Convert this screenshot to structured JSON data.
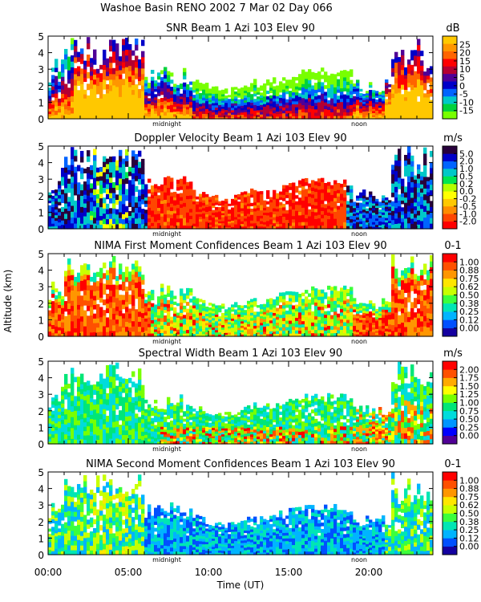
{
  "header": {
    "title": "Washoe Basin RENO 2002   7 Mar 02 Day 066"
  },
  "figure": {
    "ylabel": "Altitude (km)",
    "xlabel": "Time (UT)",
    "x_ticks": [
      "00:00",
      "05:00",
      "10:00",
      "15:00",
      "20:00"
    ],
    "midnight_label": "midnight",
    "noon_label": "noon"
  },
  "chart_data": [
    {
      "type": "heatmap",
      "title": "SNR Beam 1 Azi 103 Elev 90",
      "unit": "dB",
      "xlim": [
        0,
        24
      ],
      "ylim": [
        0,
        5
      ],
      "y_ticks": [
        "0",
        "1",
        "2",
        "3",
        "4",
        "5"
      ],
      "colorbar_ticks": [
        "-15",
        "-10",
        "-5",
        "0",
        "5",
        "10",
        "15",
        "20",
        "25"
      ],
      "colors": [
        "#78ff00",
        "#00d23c",
        "#00c8c8",
        "#0064ff",
        "#0000c8",
        "#500096",
        "#b40032",
        "#ff0000",
        "#ff6400",
        "#ff9600",
        "#ffc800"
      ]
    },
    {
      "type": "heatmap",
      "title": "Doppler Velocity Beam 1 Azi 103 Elev 90",
      "unit": "m/s",
      "xlim": [
        0,
        24
      ],
      "ylim": [
        0,
        5
      ],
      "y_ticks": [
        "0",
        "1",
        "2",
        "3",
        "4",
        "5"
      ],
      "colorbar_ticks": [
        "-2.0",
        "-1.0",
        "-0.5",
        "-0.2",
        "0.0",
        "0.2",
        "0.5",
        "1.0",
        "2.0",
        "5.0"
      ],
      "colors": [
        "#ff0000",
        "#ff4600",
        "#ff8c00",
        "#ffc800",
        "#ffff00",
        "#b4ff00",
        "#00e650",
        "#00c8c8",
        "#0064ff",
        "#0000c8",
        "#28003c"
      ]
    },
    {
      "type": "heatmap",
      "title": "NIMA First Moment Confidences Beam 1 Azi 103 Elev 90",
      "unit": "0-1",
      "xlim": [
        0,
        24
      ],
      "ylim": [
        0,
        5
      ],
      "y_ticks": [
        "0",
        "1",
        "2",
        "3",
        "4",
        "5"
      ],
      "colorbar_ticks": [
        "0.00",
        "0.12",
        "0.25",
        "0.38",
        "0.50",
        "0.62",
        "0.75",
        "0.88",
        "1.00"
      ],
      "colors": [
        "#1400a0",
        "#0050ff",
        "#00b4ff",
        "#00e6b4",
        "#3cff3c",
        "#c8ff00",
        "#ffe600",
        "#ff9600",
        "#ff5000",
        "#ff0000"
      ]
    },
    {
      "type": "heatmap",
      "title": "Spectral Width Beam 1 Azi 103 Elev 90",
      "unit": "m/s",
      "xlim": [
        0,
        24
      ],
      "ylim": [
        0,
        5
      ],
      "y_ticks": [
        "0",
        "1",
        "2",
        "3",
        "4",
        "5"
      ],
      "colorbar_ticks": [
        "0.00",
        "0.25",
        "0.50",
        "0.75",
        "1.00",
        "1.25",
        "1.50",
        "1.75",
        "2.00"
      ],
      "colors": [
        "#500096",
        "#0000ff",
        "#0096ff",
        "#00dcdc",
        "#00e678",
        "#78ff00",
        "#ffff00",
        "#ffaa00",
        "#ff5000",
        "#ff0000"
      ]
    },
    {
      "type": "heatmap",
      "title": "NIMA Second Moment Confidences Beam 1 Azi 103 Elev 90",
      "unit": "0-1",
      "xlim": [
        0,
        24
      ],
      "ylim": [
        0,
        5
      ],
      "y_ticks": [
        "0",
        "1",
        "2",
        "3",
        "4",
        "5"
      ],
      "colorbar_ticks": [
        "0.00",
        "0.12",
        "0.25",
        "0.38",
        "0.50",
        "0.62",
        "0.75",
        "0.88",
        "1.00"
      ],
      "colors": [
        "#1400a0",
        "#0050ff",
        "#00b4ff",
        "#00e6b4",
        "#3cff3c",
        "#c8ff00",
        "#ffe600",
        "#ff9600",
        "#ff5000",
        "#ff0000"
      ]
    }
  ]
}
